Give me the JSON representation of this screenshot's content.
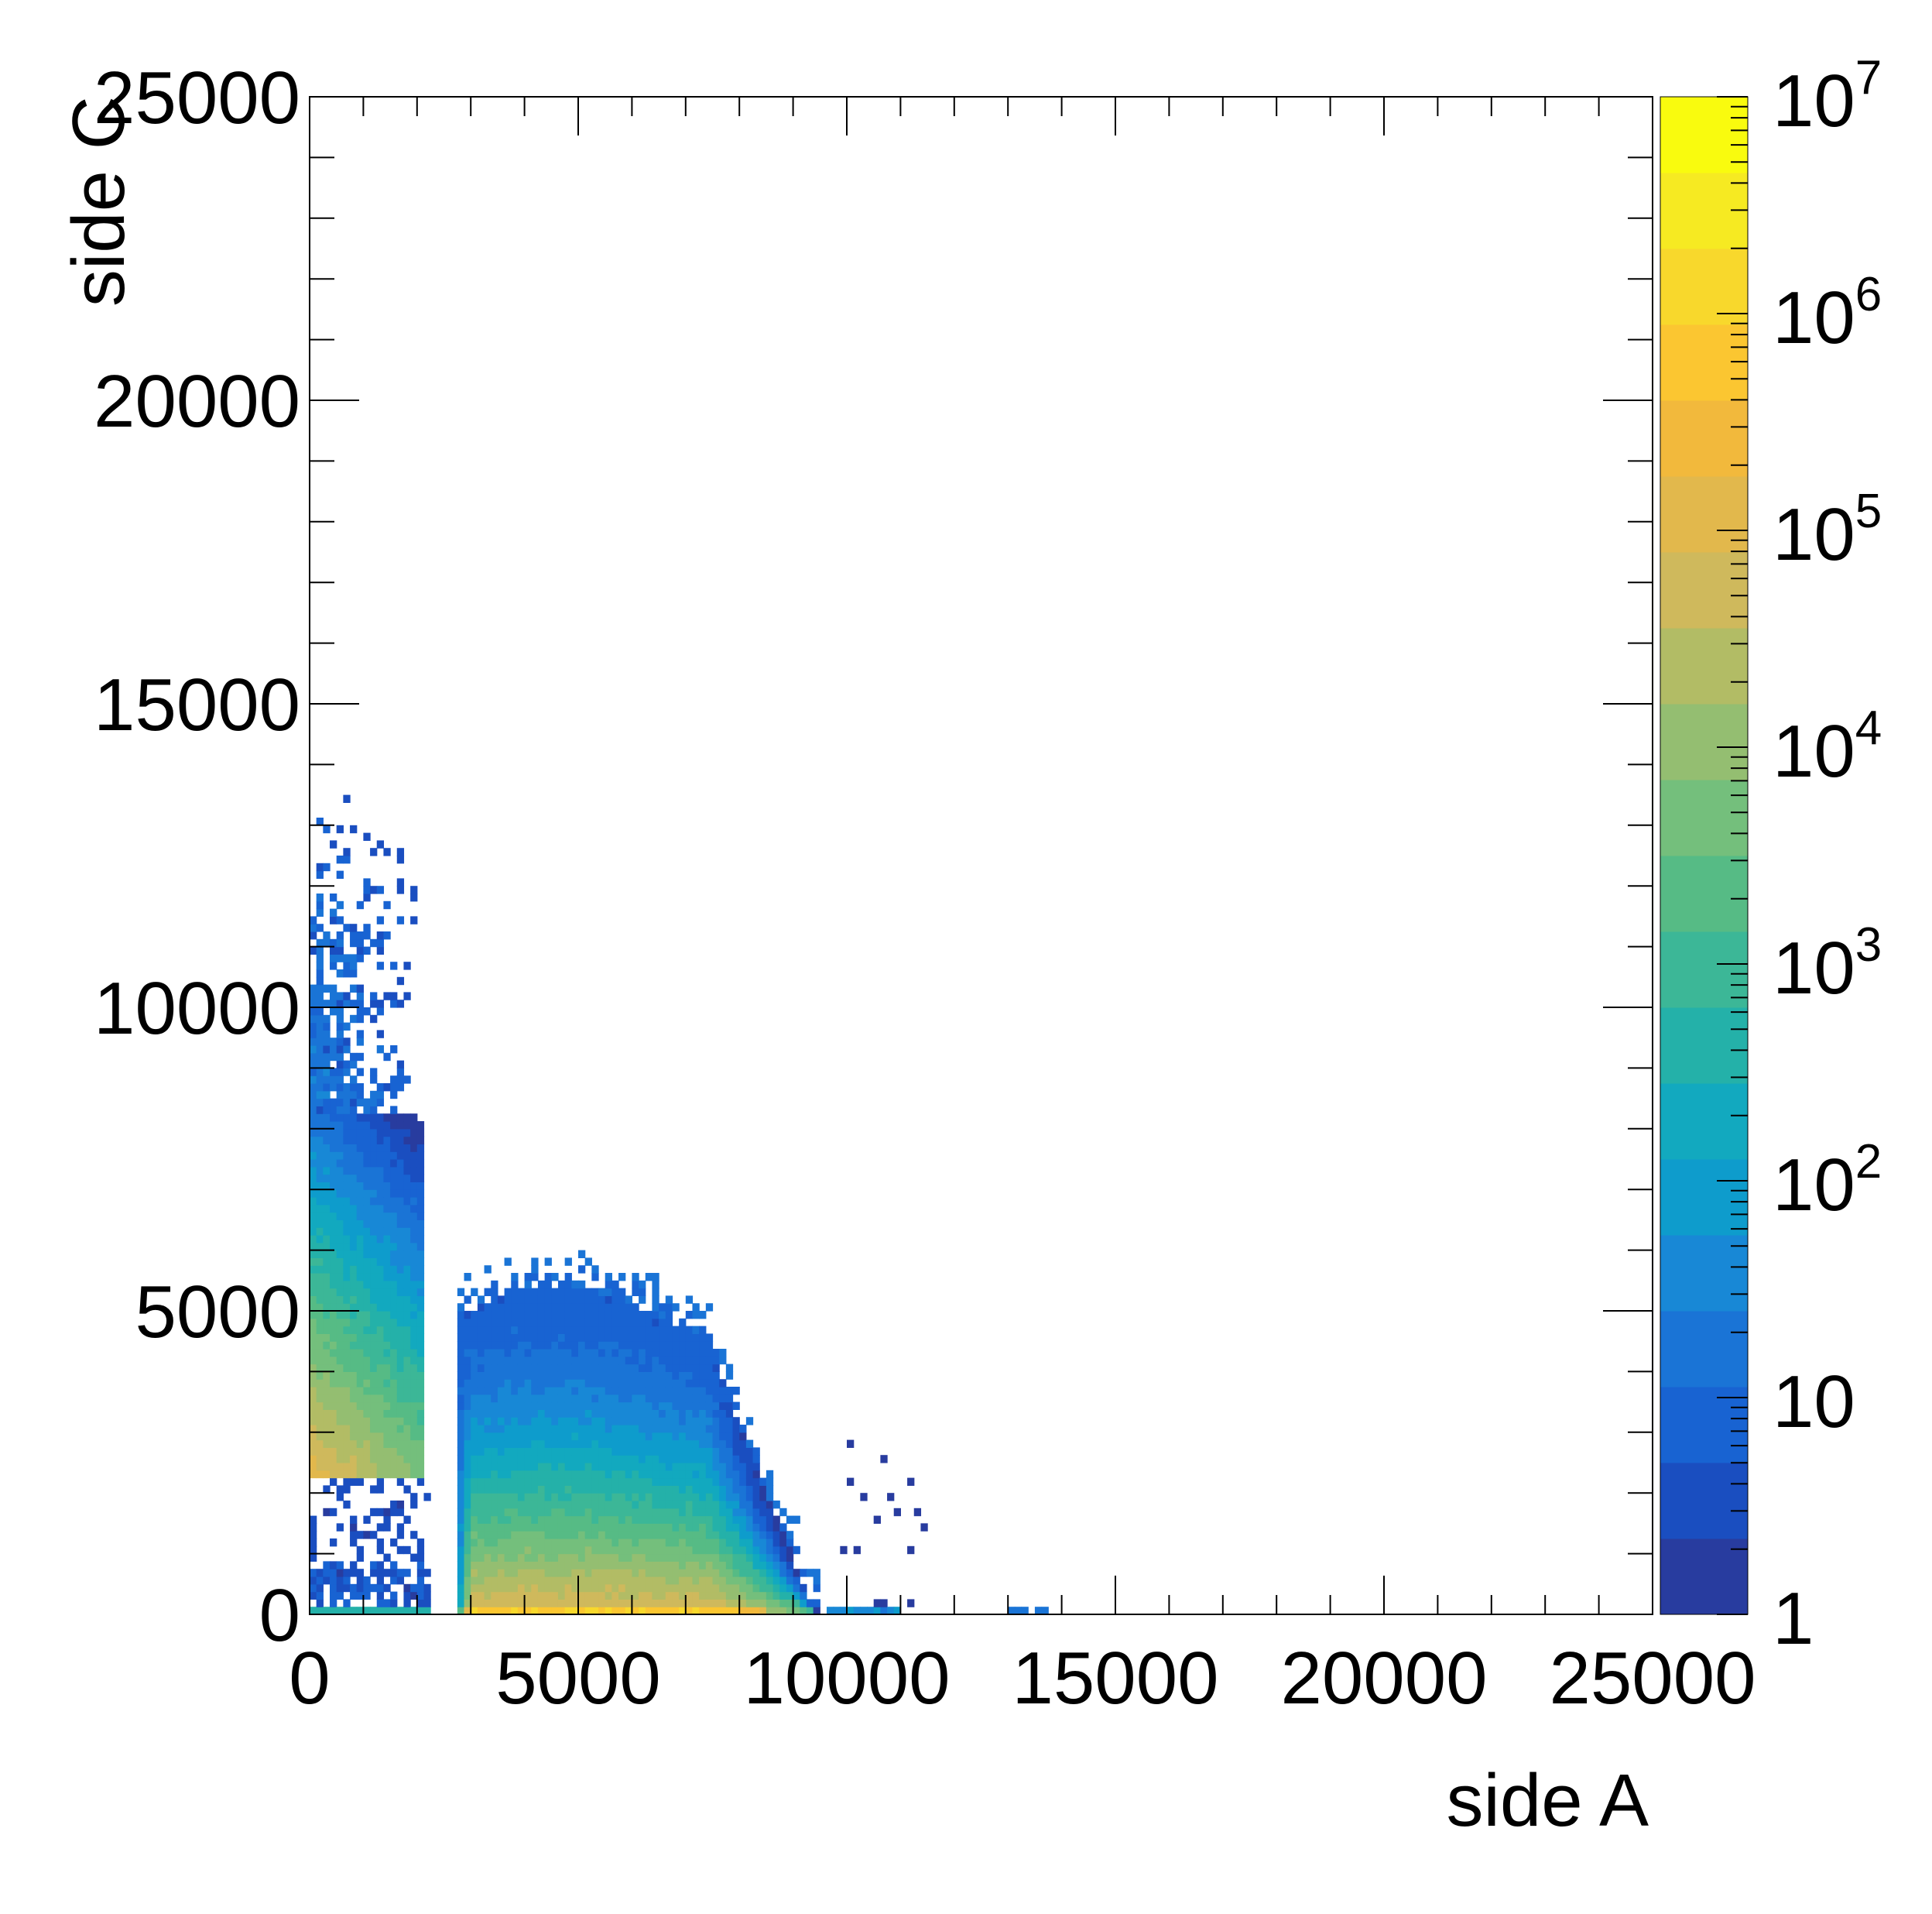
{
  "chart_data": {
    "type": "heatmap",
    "title": "",
    "xlabel": "side A",
    "ylabel": "side C",
    "xlim": [
      0,
      25000
    ],
    "ylim": [
      0,
      25000
    ],
    "x_ticks": [
      "0",
      "5000",
      "10000",
      "15000",
      "20000",
      "25000"
    ],
    "y_ticks": [
      "0",
      "5000",
      "10000",
      "15000",
      "20000",
      "25000"
    ],
    "z_scale": "log",
    "zlim": [
      1,
      10000000
    ],
    "z_ticks": [
      {
        "value": 1,
        "mantissa": "1",
        "exp": ""
      },
      {
        "value": 10,
        "mantissa": "10",
        "exp": ""
      },
      {
        "value": 100,
        "mantissa": "10",
        "exp": "2"
      },
      {
        "value": 1000,
        "mantissa": "10",
        "exp": "3"
      },
      {
        "value": 10000,
        "mantissa": "10",
        "exp": "4"
      },
      {
        "value": 100000,
        "mantissa": "10",
        "exp": "5"
      },
      {
        "value": 1000000,
        "mantissa": "10",
        "exp": "6"
      },
      {
        "value": 10000000,
        "mantissa": "10",
        "exp": "7"
      }
    ],
    "colormap": [
      "#283c9f",
      "#1a4ec0",
      "#1863d2",
      "#1a74d6",
      "#1888d6",
      "#0e9ccc",
      "#12a9bf",
      "#24b1a9",
      "#3cb797",
      "#56bb85",
      "#74bf7c",
      "#94be71",
      "#b2bc65",
      "#cfb95c",
      "#e2b84c",
      "#f2b93c",
      "#fbc631",
      "#f8d82c",
      "#f6ea22",
      "#f9fb0e"
    ],
    "grid": false,
    "legend": "none",
    "regions": [
      {
        "x": [
          0,
          2150
        ],
        "y": [
          2200,
          13600
        ],
        "peak_count": 300000,
        "shape": "left-band"
      },
      {
        "x": [
          0,
          2200
        ],
        "y": [
          0,
          2200
        ],
        "peak_count": 20,
        "shape": "sparse-corner"
      },
      {
        "x": [
          0,
          2300
        ],
        "y": [
          0,
          180
        ],
        "peak_count": 600,
        "shape": "base-strip"
      },
      {
        "x": [
          2700,
          9600
        ],
        "y": [
          0,
          6200
        ],
        "peak_count": 700000,
        "shape": "central-blob"
      },
      {
        "x": [
          9600,
          11500
        ],
        "y": [
          0,
          3300
        ],
        "peak_count": 10,
        "shape": "sparse-tail"
      },
      {
        "x": [
          13000,
          13800
        ],
        "y": [
          0,
          130
        ],
        "peak_count": 30,
        "shape": "isolated-strip"
      }
    ]
  }
}
